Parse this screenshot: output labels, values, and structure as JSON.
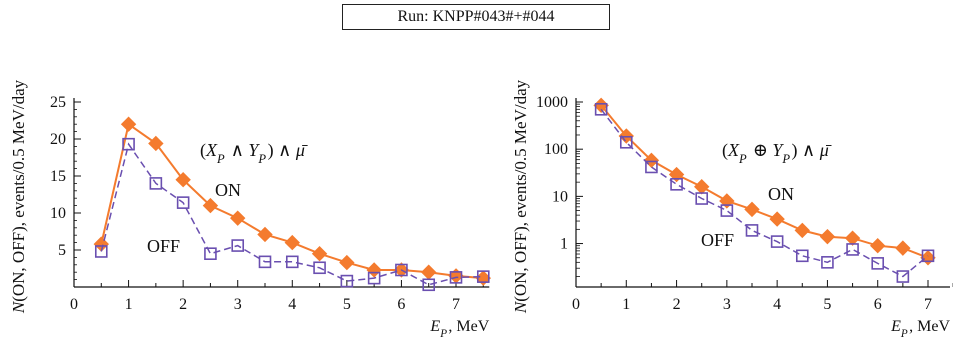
{
  "run_label": "Run: KNPP#043#+#044",
  "colors": {
    "on": "#f47b2e",
    "off": "#6a4fb0",
    "axis": "#111111"
  },
  "chart_data": [
    {
      "type": "line",
      "scale": "linear",
      "ylabel": "N(ON, OFF), events/0.5 MeV/day",
      "xlabel": "E_P, MeV",
      "annotation": "(X_P ∧ Y_P) ∧ μ̄",
      "xlim": [
        0,
        7.5
      ],
      "ylim": [
        0,
        25
      ],
      "xticks": [
        "0",
        "1",
        "2",
        "3",
        "4",
        "5",
        "6",
        "7"
      ],
      "yticks": [
        "5",
        "10",
        "15",
        "20",
        "25"
      ],
      "series": [
        {
          "name": "ON",
          "marker": "filled-diamond",
          "line": "solid",
          "x": [
            0.5,
            1,
            1.5,
            2,
            2.5,
            3,
            3.5,
            4,
            4.5,
            5,
            5.5,
            6,
            6.5,
            7,
            7.5
          ],
          "values": [
            5.8,
            22,
            19.4,
            14.5,
            11,
            9.3,
            7.1,
            6,
            4.5,
            3.3,
            2.3,
            2.3,
            2,
            1.5,
            1.2
          ]
        },
        {
          "name": "OFF",
          "marker": "open-square",
          "line": "dashed",
          "x": [
            0.5,
            1,
            1.5,
            2,
            2.5,
            3,
            3.5,
            4,
            4.5,
            5,
            5.5,
            6,
            6.5,
            7,
            7.5
          ],
          "values": [
            4.8,
            19.3,
            14,
            11.4,
            4.5,
            5.6,
            3.4,
            3.4,
            2.6,
            0.8,
            1.2,
            2.3,
            0.3,
            1.3,
            1.4
          ]
        }
      ]
    },
    {
      "type": "line",
      "scale": "log",
      "ylabel": "N(ON, OFF), events/0.5 MeV/day",
      "xlabel": "E_P, MeV",
      "annotation": "(X_P ⊕ Y_P) ∧ μ̄",
      "xlim": [
        0,
        7.5
      ],
      "ylim": [
        0.12,
        1000
      ],
      "xticks": [
        "0",
        "1",
        "2",
        "3",
        "4",
        "5",
        "6",
        "7"
      ],
      "yticks": [
        "1",
        "10",
        "100",
        "1000"
      ],
      "series": [
        {
          "name": "ON",
          "marker": "filled-diamond",
          "line": "solid",
          "x": [
            0.5,
            1,
            1.5,
            2,
            2.5,
            3,
            3.5,
            4,
            4.5,
            5,
            5.5,
            6,
            6.5,
            7,
            7.5
          ],
          "values": [
            850,
            190,
            58,
            29,
            16,
            8,
            5.3,
            3.3,
            1.9,
            1.4,
            1.3,
            0.9,
            0.8,
            0.5,
            0.5
          ]
        },
        {
          "name": "OFF",
          "marker": "open-square",
          "line": "dashed",
          "x": [
            0.5,
            1,
            1.5,
            2,
            2.5,
            3,
            3.5,
            4,
            4.5,
            5,
            5.5,
            6,
            6.5,
            7,
            7.5
          ],
          "values": [
            700,
            140,
            42,
            18,
            9,
            5,
            1.9,
            1.1,
            0.55,
            0.4,
            0.75,
            0.38,
            0.2,
            0.55,
            0.55
          ]
        }
      ]
    }
  ]
}
